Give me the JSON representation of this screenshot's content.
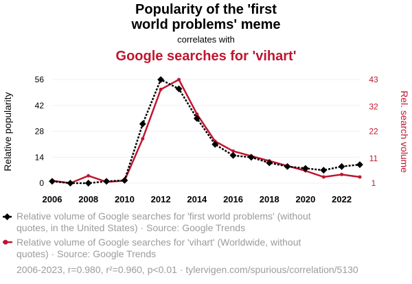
{
  "chart_data": {
    "type": "line",
    "title_line1": "Popularity of the 'first",
    "title_line2": "world problems' meme",
    "subtitle": "correlates with",
    "title2": "Google searches for 'vihart'",
    "ylabel_left": "Relative popularity",
    "ylabel_right": "Rel. search volume",
    "x": [
      2006,
      2007,
      2008,
      2009,
      2010,
      2011,
      2012,
      2013,
      2014,
      2015,
      2016,
      2017,
      2018,
      2019,
      2020,
      2021,
      2022,
      2023
    ],
    "x_ticks": [
      "2006",
      "2008",
      "2010",
      "2012",
      "2014",
      "2016",
      "2018",
      "2020",
      "2022"
    ],
    "y_left_ticks": [
      "0",
      "14",
      "28",
      "42",
      "56"
    ],
    "y_right_ticks": [
      "1",
      "11",
      "22",
      "32",
      "43"
    ],
    "ylim_left": [
      0,
      56
    ],
    "ylim_right": [
      1,
      43
    ],
    "series": [
      {
        "axis": "left",
        "color": "#000000",
        "values": [
          1,
          0,
          0,
          1,
          1.5,
          32,
          56,
          51,
          35,
          21,
          15,
          14,
          11,
          9,
          8,
          7,
          9,
          10
        ],
        "legend_line1": "Relative volume of Google searches for 'first world problems' (without",
        "legend_line2": "quotes, in the United States) · Source: Google Trends"
      },
      {
        "axis": "right",
        "color": "#c0152f",
        "values": [
          2,
          1,
          4,
          1.5,
          2,
          19,
          39,
          43,
          29,
          18,
          14,
          12,
          10,
          8,
          6,
          3.5,
          4.5,
          3.5
        ],
        "legend_line1": "Relative volume of Google searches for 'vihart' (Worldwide, without",
        "legend_line2": "quotes) · Source: Google Trends"
      }
    ],
    "grid": true,
    "footer": "2006-2023, r=0.980, r²=0.960, p<0.01 · tylervigen.com/spurious/correlation/5130"
  }
}
